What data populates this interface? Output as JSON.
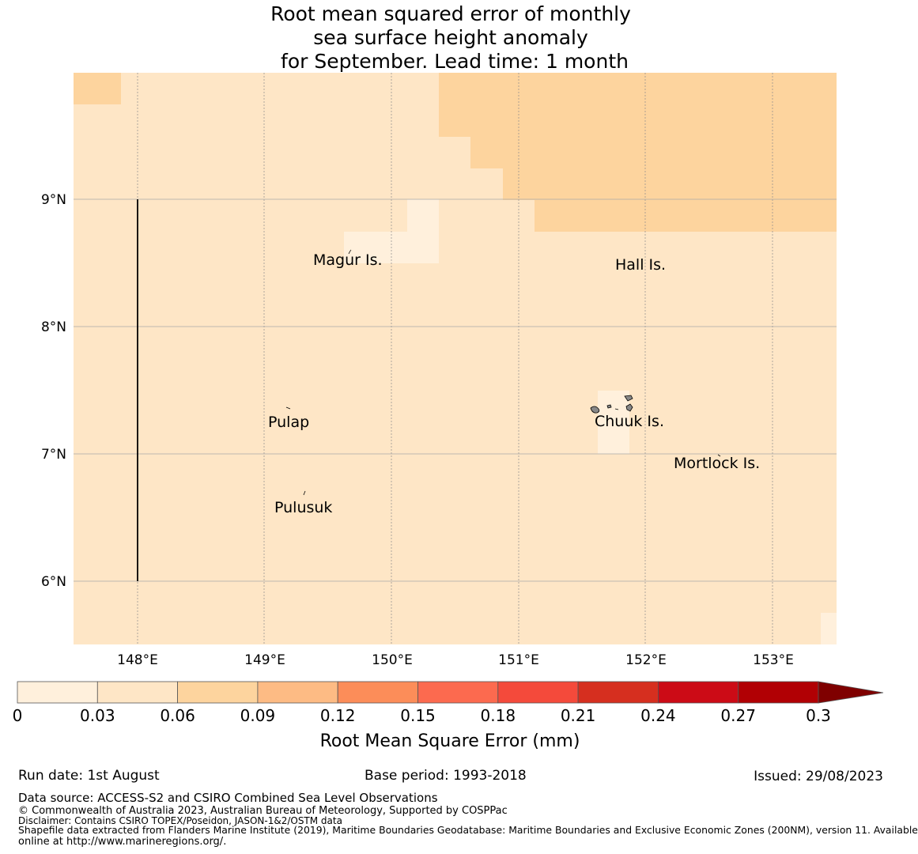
{
  "title": {
    "line1": "Root mean squared error of monthly",
    "line2": "sea surface height anomaly",
    "line3": "for September. Lead time: 1 month"
  },
  "map": {
    "lon_range": [
      147.5,
      153.5
    ],
    "lat_range": [
      5.5,
      10.0
    ],
    "x_ticks": [
      "148°E",
      "149°E",
      "150°E",
      "151°E",
      "152°E",
      "153°E"
    ],
    "y_ticks": [
      "9°N",
      "8°N",
      "7°N",
      "6°N"
    ],
    "islands": [
      {
        "name": "Magur Is."
      },
      {
        "name": "Hall Is."
      },
      {
        "name": "Pulap"
      },
      {
        "name": "Chuuk Is."
      },
      {
        "name": "Mortlock Is."
      },
      {
        "name": "Pulusuk"
      }
    ],
    "cell_colors": {
      "low": "#fff0dc",
      "mid": "#fee6c6",
      "high": "#fdd49e"
    }
  },
  "colorbar": {
    "ticks": [
      "0",
      "0.03",
      "0.06",
      "0.09",
      "0.12",
      "0.15",
      "0.18",
      "0.21",
      "0.24",
      "0.27",
      "0.3"
    ],
    "colors": [
      "#fff0dc",
      "#fee6c6",
      "#fdd49e",
      "#fdbb84",
      "#fc8d59",
      "#fc6a4f",
      "#f44a3b",
      "#d62f1f",
      "#cc0b16",
      "#b10004"
    ],
    "extend_color": "#7f0000",
    "label": "Root Mean Square Error (mm)"
  },
  "footer": {
    "run_date": "Run date: 1st August",
    "base_period": "Base period: 1993-2018",
    "issued": "Issued: 29/08/2023",
    "data_source": "Data source: ACCESS-S2 and CSIRO Combined Sea Level Observations",
    "copyright": "© Commonwealth of Australia 2023, Australian Bureau of Meteorology, Supported by COSPPac",
    "disclaimer": "Disclaimer: Contains CSIRO TOPEX/Poseidon, JASON-1&2/OSTM data",
    "shapefile1": "Shapefile data extracted from Flanders Marine Institute (2019), Maritime Boundaries Geodatabase: Maritime Boundaries and Exclusive Economic Zones (200NM), version 11. Available",
    "shapefile2": "online at http://www.marineregions.org/."
  }
}
